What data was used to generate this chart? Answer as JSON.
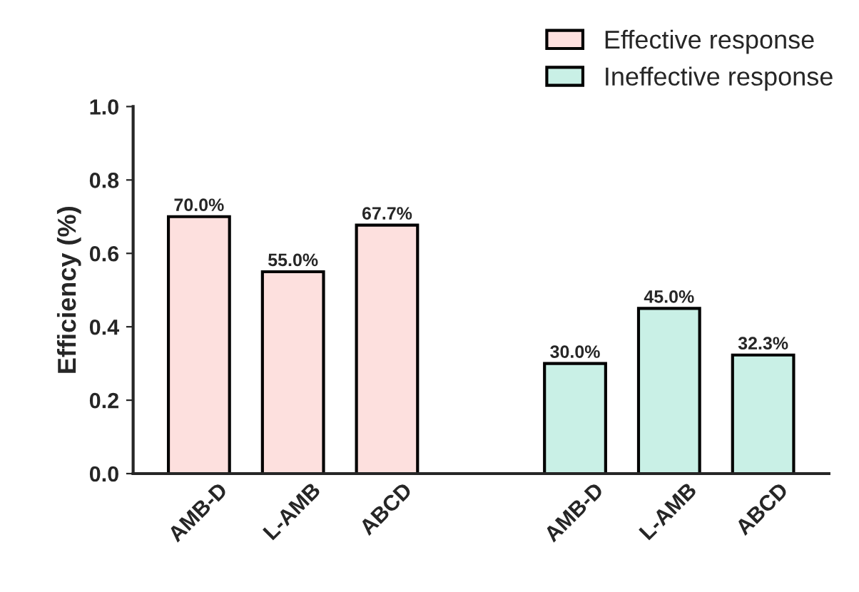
{
  "chart_data": {
    "type": "bar",
    "ylabel": "Efficiency (%)",
    "categories": [
      "AMB-D",
      "L-AMB",
      "ABCD",
      null,
      "AMB-D",
      "L-AMB",
      "ABCD"
    ],
    "series": [
      {
        "name": "Effective response",
        "color": "#fde0de",
        "values": [
          0.7,
          0.55,
          0.677,
          null,
          null,
          null,
          null
        ],
        "value_labels": [
          "70.0%",
          "55.0%",
          "67.7%",
          null,
          null,
          null,
          null
        ]
      },
      {
        "name": "Ineffective response",
        "color": "#c9f0e6",
        "values": [
          null,
          null,
          null,
          null,
          0.3,
          0.45,
          0.323
        ],
        "value_labels": [
          null,
          null,
          null,
          null,
          "30.0%",
          "45.0%",
          "32.3%"
        ]
      }
    ],
    "ylim": [
      0,
      1.0
    ],
    "yticks": [
      {
        "value": 0,
        "label": "0.0"
      },
      {
        "value": 0.2,
        "label": "0.2"
      },
      {
        "value": 0.4,
        "label": "0.4"
      },
      {
        "value": 0.6,
        "label": "0.6"
      },
      {
        "value": 0.8,
        "label": "0.8"
      },
      {
        "value": 1.0,
        "label": "1.0"
      }
    ],
    "grid": false,
    "legend": "top right"
  }
}
